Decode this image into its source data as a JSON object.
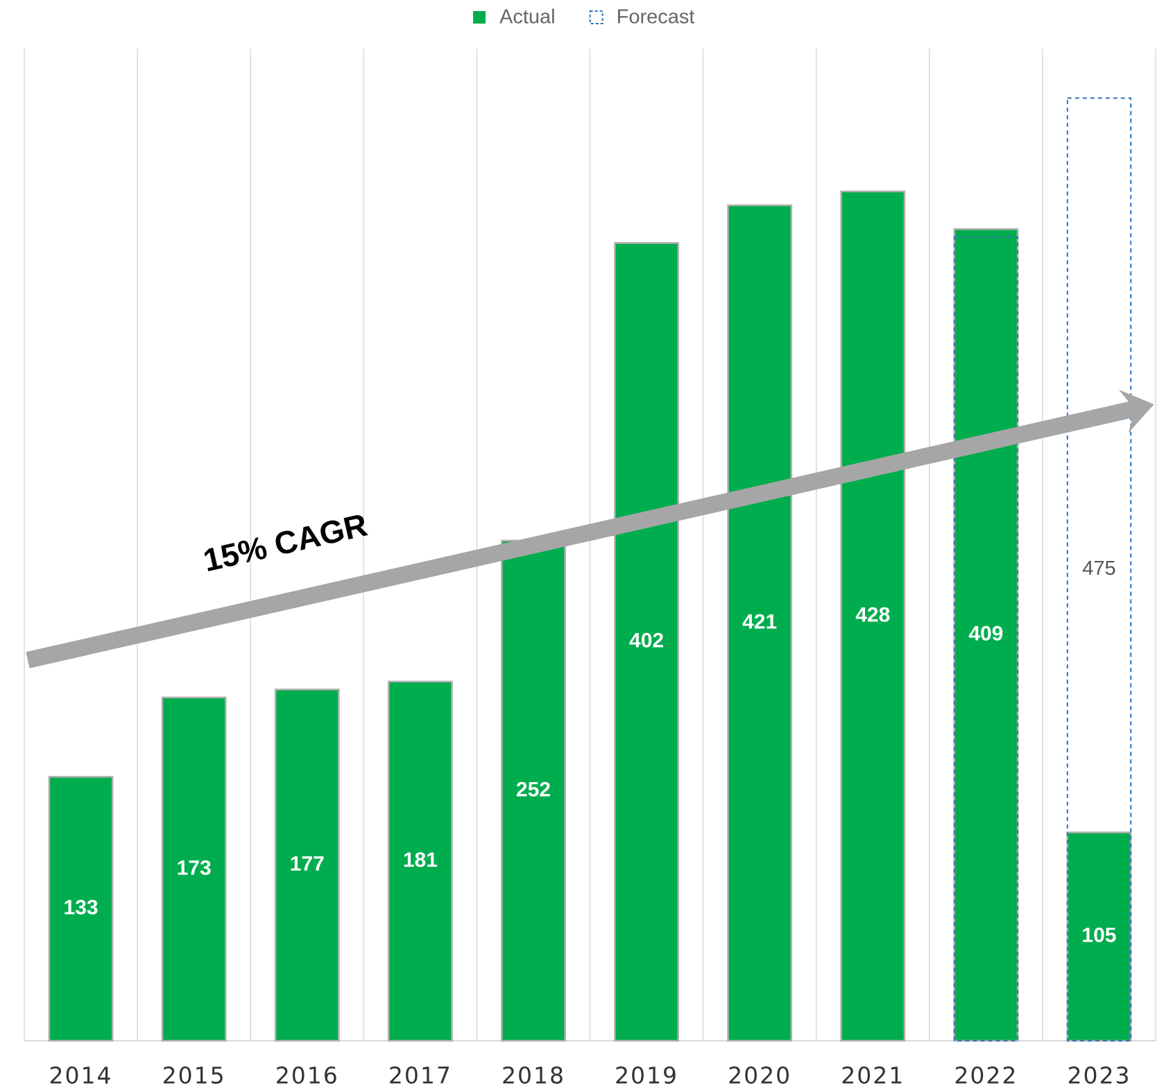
{
  "chart_data": {
    "type": "bar",
    "categories": [
      "2014",
      "2015",
      "2016",
      "2017",
      "2018",
      "2019",
      "2020",
      "2021",
      "2022",
      "2023"
    ],
    "series": [
      {
        "name": "Actual",
        "color": "#00ad4e",
        "values": [
          133,
          173,
          177,
          181,
          252,
          402,
          421,
          428,
          409,
          105
        ]
      },
      {
        "name": "Forecast",
        "color": "#2e75b6",
        "style": "dashed",
        "values": [
          null,
          null,
          null,
          null,
          null,
          null,
          null,
          null,
          405,
          475
        ],
        "value_labels": [
          null,
          null,
          null,
          null,
          null,
          null,
          null,
          null,
          null,
          "475"
        ]
      }
    ],
    "ylim": [
      0,
      500
    ],
    "xgrid": true,
    "legend": "top",
    "annotations": [
      "15% CAGR"
    ]
  }
}
